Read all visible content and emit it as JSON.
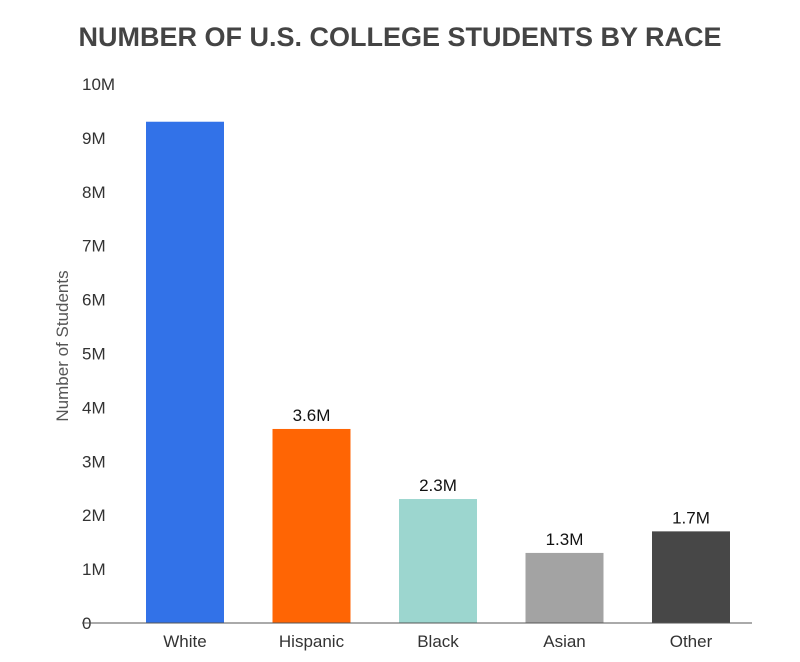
{
  "chart_data": {
    "type": "bar",
    "title": "NUMBER OF U.S. COLLEGE STUDENTS BY RACE",
    "xlabel": "",
    "ylabel": "Number of Students",
    "ylim": [
      0,
      10
    ],
    "yticks": [
      0,
      1,
      2,
      3,
      4,
      5,
      6,
      7,
      8,
      9,
      10
    ],
    "ytick_labels": [
      "0",
      "1M",
      "2M",
      "3M",
      "4M",
      "5M",
      "6M",
      "7M",
      "8M",
      "9M",
      "10M"
    ],
    "categories": [
      "White",
      "Hispanic",
      "Black",
      "Asian",
      "Other"
    ],
    "values": [
      9.3,
      3.6,
      2.3,
      1.3,
      1.7
    ],
    "data_labels": [
      "",
      "3.6M",
      "2.3M",
      "1.3M",
      "1.7M"
    ],
    "colors": [
      "#3272e8",
      "#ff6504",
      "#9cd6cf",
      "#a3a3a3",
      "#474747"
    ],
    "grid": false,
    "legend": "none"
  }
}
